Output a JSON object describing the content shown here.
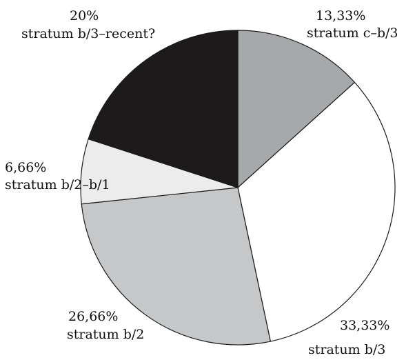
{
  "chart_data": {
    "type": "pie",
    "start": "12 o'clock",
    "direction": "clockwise",
    "slices": [
      {
        "value": 13.33,
        "value_label": "13,33%",
        "category": "stratum c–b/3",
        "color": "#a7a8aa"
      },
      {
        "value": 33.33,
        "value_label": "33,33%",
        "category": "stratum b/3",
        "color": "#ffffff"
      },
      {
        "value": 26.66,
        "value_label": "26,66%",
        "category": "stratum b/2",
        "color": "#c6c7c9"
      },
      {
        "value": 6.66,
        "value_label": "6,66%",
        "category": "stratum b/2–b/1",
        "color": "#ececec"
      },
      {
        "value": 20,
        "value_label": "20%",
        "category": "stratum b/3–recent?",
        "color": "#1c1a1b"
      }
    ]
  }
}
